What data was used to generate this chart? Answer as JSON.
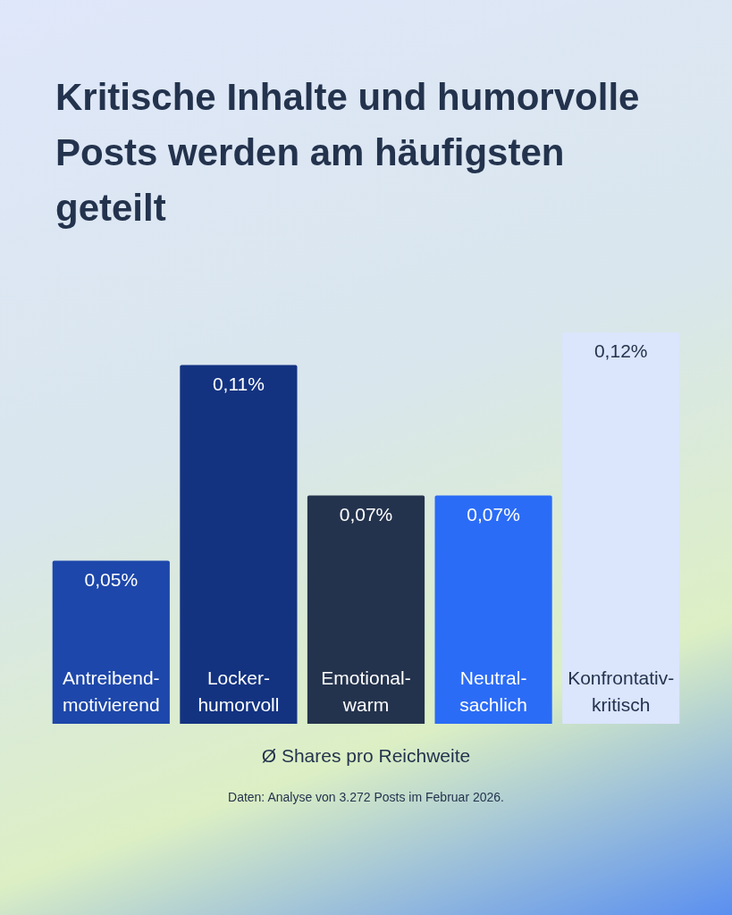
{
  "chart_data": {
    "type": "bar",
    "title": "Kritische Inhalte und humorvolle Posts werden am häufigsten geteilt",
    "categories": [
      "Antreibend-motivierend",
      "Locker-humorvoll",
      "Emotional-warm",
      "Neutral-sachlich",
      "Konfrontativ-kritisch"
    ],
    "values": [
      0.05,
      0.11,
      0.07,
      0.07,
      0.12
    ],
    "colors": [
      "#1d47aa",
      "#133381",
      "#24334d",
      "#2b6cf6",
      "#dbe5fc"
    ],
    "value_labels": [
      "0,05%",
      "0,11%",
      "0,07%",
      "0,07%",
      "0,12%"
    ],
    "xlabel": "Ø Shares pro Reichweite",
    "annotations": [
      "Daten: Analyse von 3.272 Posts im Februar 2026."
    ],
    "tick_labels": false
  }
}
